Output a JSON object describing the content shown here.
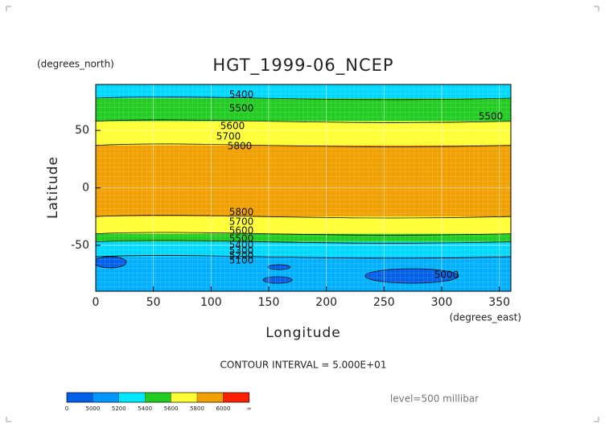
{
  "chart_data": {
    "type": "zonal-contour-map",
    "title": "HGT_1999-06_NCEP",
    "y_units": "(degrees_north)",
    "x_units": "(degrees_east)",
    "x_label": "Longitude",
    "y_label": "Latitude",
    "footnote": "CONTOUR INTERVAL = 5.000E+01",
    "level_note": "level=500 millibar",
    "xlim": [
      0,
      360
    ],
    "ylim": [
      -90,
      90
    ],
    "xticks": [
      0,
      50,
      100,
      150,
      200,
      250,
      300,
      350
    ],
    "yticks": [
      -50,
      0,
      50
    ],
    "grid": true,
    "bands": [
      {
        "lat": [
          90,
          78
        ],
        "color": "#00d8ff"
      },
      {
        "lat": [
          78,
          58
        ],
        "color": "#22cc22"
      },
      {
        "lat": [
          58,
          37
        ],
        "color": "#ffff33"
      },
      {
        "lat": [
          37,
          -25
        ],
        "color": "#f0a000"
      },
      {
        "lat": [
          -25,
          -40
        ],
        "color": "#ffff33"
      },
      {
        "lat": [
          -40,
          -47
        ],
        "color": "#22cc22"
      },
      {
        "lat": [
          -47,
          -60
        ],
        "color": "#00d8ff"
      },
      {
        "lat": [
          -60,
          -90
        ],
        "color": "#00b0ff"
      }
    ],
    "contour_labels": [
      5400,
      5500,
      5600,
      5700,
      5800,
      5500,
      5800,
      5700,
      5600,
      5500,
      5400,
      5300,
      5200,
      5100,
      5000
    ],
    "colorbar": {
      "ticks": [
        0,
        5000,
        5200,
        5400,
        5600,
        5800,
        6000
      ],
      "overflow_label": "∞",
      "colors": [
        "#0060e8",
        "#0098ff",
        "#00e8ff",
        "#22cc22",
        "#ffff33",
        "#f0a000",
        "#ff2000"
      ]
    }
  }
}
